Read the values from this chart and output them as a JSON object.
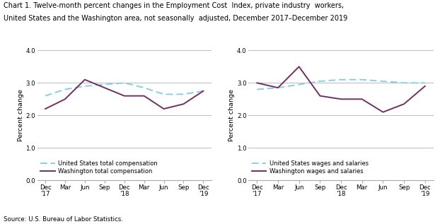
{
  "title_line1": "Chart 1. Twelve-month percent changes in the Employment Cost  Index, private industry  workers,",
  "title_line2": "United States and the Washington area, not seasonally  adjusted, December 2017–December 2019",
  "ylabel": "Percent change",
  "source": "Source: U.S. Bureau of Labor Statistics.",
  "x_labels": [
    "Dec\n'17",
    "Mar",
    "Jun",
    "Sep",
    "Dec\n'18",
    "Mar",
    "Jun",
    "Sep",
    "Dec\n'19"
  ],
  "ylim": [
    0.0,
    4.0
  ],
  "yticks": [
    0.0,
    1.0,
    2.0,
    3.0,
    4.0
  ],
  "chart1": {
    "us_total_comp": [
      2.6,
      2.8,
      2.9,
      2.95,
      3.0,
      2.85,
      2.65,
      2.65,
      2.75
    ],
    "wa_total_comp": [
      2.2,
      2.5,
      3.1,
      2.85,
      2.6,
      2.6,
      2.2,
      2.35,
      2.75
    ],
    "legend1": "United States total compensation",
    "legend2": "Washington total compensation"
  },
  "chart2": {
    "us_wages": [
      2.8,
      2.85,
      2.95,
      3.05,
      3.1,
      3.1,
      3.05,
      3.0,
      3.0
    ],
    "wa_wages": [
      3.0,
      2.85,
      3.5,
      2.6,
      2.5,
      2.5,
      2.1,
      2.35,
      2.9
    ],
    "legend1": "United States wages and salaries",
    "legend2": "Washington wages and salaries"
  },
  "us_color": "#87CEEB",
  "wa_color": "#722F5F",
  "background_color": "#ffffff",
  "grid_color": "#bbbbbb",
  "title_fontsize": 7.0,
  "axis_label_fontsize": 6.8,
  "tick_fontsize": 6.2,
  "legend_fontsize": 6.0,
  "source_fontsize": 6.2
}
